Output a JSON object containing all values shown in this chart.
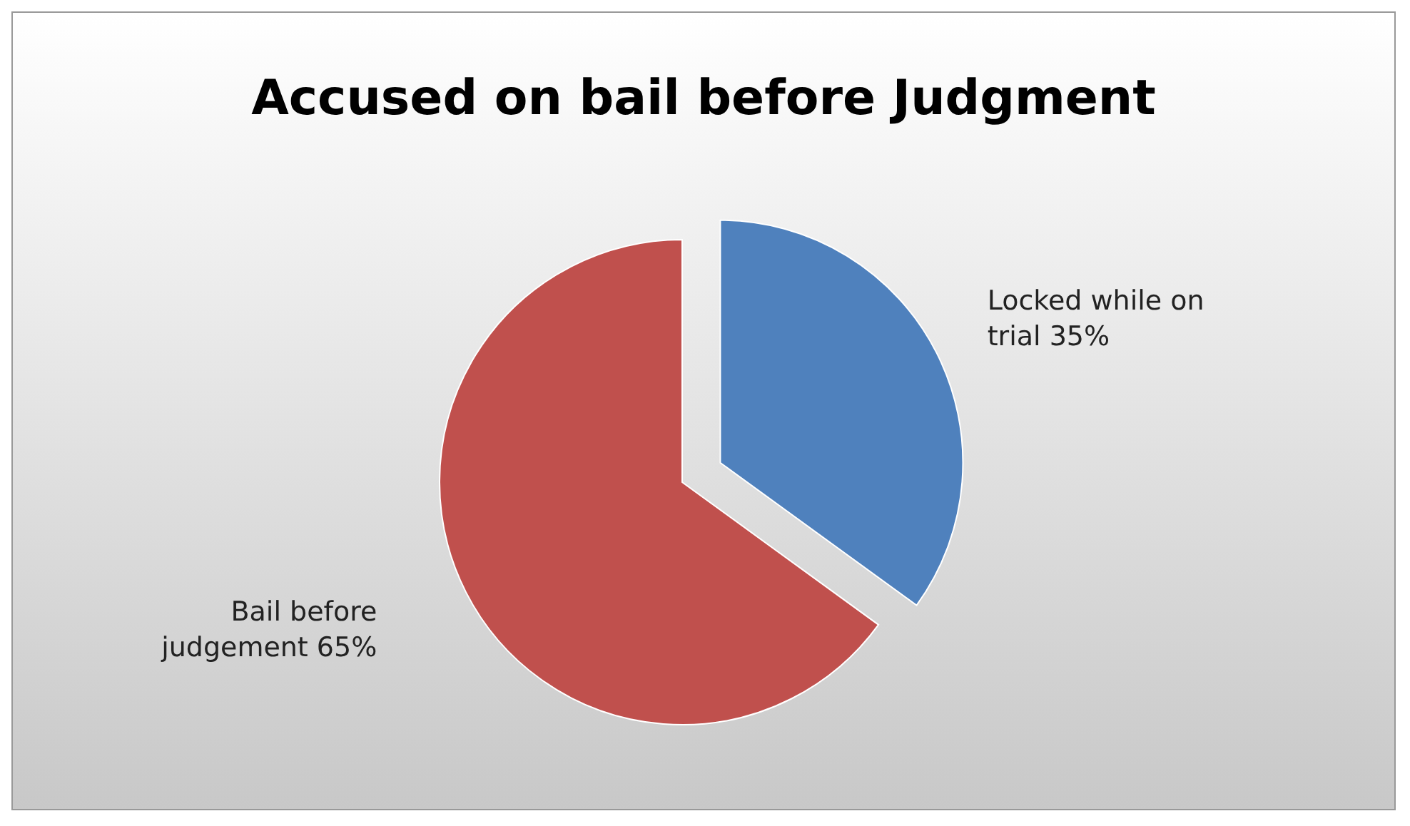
{
  "chart_data": {
    "type": "pie",
    "title": "Accused on bail before Judgment",
    "categories": [
      "Locked while on trial",
      "Bail before judgement"
    ],
    "values": [
      35,
      65
    ],
    "colors": [
      "#4f81bd",
      "#c0504d"
    ],
    "value_labels": [
      "35%",
      "65%"
    ]
  }
}
